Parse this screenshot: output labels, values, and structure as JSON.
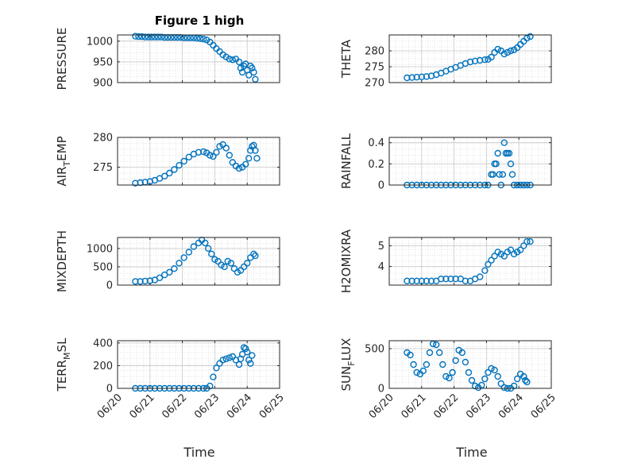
{
  "title": "Figure 1 high",
  "marker_color": "#0072BD",
  "chart_data": [
    {
      "type": "scatter",
      "ylabel": "PRESSURE",
      "ylim": [
        900,
        1015
      ],
      "yticks": [
        900,
        950,
        1000
      ],
      "xlim": [
        0,
        5
      ],
      "grid": true,
      "points": [
        [
          0.55,
          1012
        ],
        [
          0.65,
          1011
        ],
        [
          0.75,
          1011
        ],
        [
          0.85,
          1010
        ],
        [
          0.95,
          1010
        ],
        [
          1.05,
          1010
        ],
        [
          1.15,
          1010
        ],
        [
          1.25,
          1010
        ],
        [
          1.35,
          1010
        ],
        [
          1.45,
          1009
        ],
        [
          1.55,
          1009
        ],
        [
          1.65,
          1009
        ],
        [
          1.75,
          1009
        ],
        [
          1.85,
          1009
        ],
        [
          1.95,
          1009
        ],
        [
          2.05,
          1008
        ],
        [
          2.15,
          1008
        ],
        [
          2.25,
          1008
        ],
        [
          2.35,
          1008
        ],
        [
          2.45,
          1007
        ],
        [
          2.55,
          1006
        ],
        [
          2.65,
          1005
        ],
        [
          2.75,
          1003
        ],
        [
          2.85,
          998
        ],
        [
          2.95,
          990
        ],
        [
          3.05,
          982
        ],
        [
          3.15,
          975
        ],
        [
          3.25,
          967
        ],
        [
          3.35,
          962
        ],
        [
          3.45,
          957
        ],
        [
          3.55,
          955
        ],
        [
          3.65,
          957
        ],
        [
          3.75,
          950
        ],
        [
          3.8,
          935
        ],
        [
          3.85,
          925
        ],
        [
          3.9,
          940
        ],
        [
          3.95,
          945
        ],
        [
          4.0,
          930
        ],
        [
          4.05,
          918
        ],
        [
          4.1,
          940
        ],
        [
          4.15,
          935
        ],
        [
          4.2,
          925
        ],
        [
          4.25,
          908
        ]
      ]
    },
    {
      "type": "scatter",
      "ylabel": "THETA",
      "ylim": [
        270,
        285
      ],
      "yticks": [
        270,
        275,
        280
      ],
      "xlim": [
        0,
        5
      ],
      "grid": true,
      "points": [
        [
          0.55,
          271.5
        ],
        [
          0.7,
          271.6
        ],
        [
          0.85,
          271.7
        ],
        [
          1.0,
          271.8
        ],
        [
          1.15,
          271.9
        ],
        [
          1.3,
          272.1
        ],
        [
          1.45,
          272.5
        ],
        [
          1.6,
          273.0
        ],
        [
          1.75,
          273.6
        ],
        [
          1.9,
          274.2
        ],
        [
          2.05,
          274.8
        ],
        [
          2.2,
          275.4
        ],
        [
          2.35,
          276.0
        ],
        [
          2.5,
          276.5
        ],
        [
          2.65,
          276.8
        ],
        [
          2.8,
          277.0
        ],
        [
          2.95,
          277.2
        ],
        [
          3.05,
          277.3
        ],
        [
          3.15,
          278.0
        ],
        [
          3.25,
          279.5
        ],
        [
          3.35,
          280.5
        ],
        [
          3.45,
          280.0
        ],
        [
          3.55,
          279.0
        ],
        [
          3.65,
          279.5
        ],
        [
          3.75,
          280.0
        ],
        [
          3.85,
          280.3
        ],
        [
          3.95,
          281.0
        ],
        [
          4.05,
          282.0
        ],
        [
          4.15,
          283.0
        ],
        [
          4.25,
          284.0
        ],
        [
          4.35,
          284.5
        ]
      ]
    },
    {
      "type": "scatter",
      "ylabel_main": "AIR",
      "ylabel_sub": "T",
      "ylabel_rest": "EMP",
      "ylim": [
        272,
        280
      ],
      "yticks": [
        275,
        280
      ],
      "xlim": [
        0,
        5
      ],
      "grid": true,
      "points": [
        [
          0.55,
          272.3
        ],
        [
          0.7,
          272.4
        ],
        [
          0.85,
          272.5
        ],
        [
          1.0,
          272.6
        ],
        [
          1.15,
          272.8
        ],
        [
          1.3,
          273.1
        ],
        [
          1.45,
          273.5
        ],
        [
          1.6,
          274.0
        ],
        [
          1.75,
          274.6
        ],
        [
          1.9,
          275.3
        ],
        [
          2.05,
          276.0
        ],
        [
          2.2,
          276.7
        ],
        [
          2.35,
          277.2
        ],
        [
          2.5,
          277.5
        ],
        [
          2.65,
          277.6
        ],
        [
          2.75,
          277.4
        ],
        [
          2.85,
          277.0
        ],
        [
          2.95,
          276.8
        ],
        [
          3.05,
          277.5
        ],
        [
          3.15,
          278.5
        ],
        [
          3.25,
          278.8
        ],
        [
          3.35,
          278.2
        ],
        [
          3.45,
          277.0
        ],
        [
          3.55,
          275.8
        ],
        [
          3.65,
          275.2
        ],
        [
          3.75,
          274.8
        ],
        [
          3.85,
          275.0
        ],
        [
          3.95,
          275.5
        ],
        [
          4.05,
          276.5
        ],
        [
          4.1,
          277.8
        ],
        [
          4.15,
          278.5
        ],
        [
          4.2,
          278.7
        ],
        [
          4.25,
          277.8
        ],
        [
          4.3,
          276.5
        ]
      ]
    },
    {
      "type": "scatter",
      "ylabel": "RAINFALL",
      "ylim": [
        0,
        0.45
      ],
      "yticks": [
        0,
        0.2,
        0.4
      ],
      "xlim": [
        0,
        5
      ],
      "grid": true,
      "points": [
        [
          0.55,
          0
        ],
        [
          0.7,
          0
        ],
        [
          0.85,
          0
        ],
        [
          1.0,
          0
        ],
        [
          1.15,
          0
        ],
        [
          1.3,
          0
        ],
        [
          1.45,
          0
        ],
        [
          1.6,
          0
        ],
        [
          1.75,
          0
        ],
        [
          1.9,
          0
        ],
        [
          2.05,
          0
        ],
        [
          2.2,
          0
        ],
        [
          2.35,
          0
        ],
        [
          2.5,
          0
        ],
        [
          2.65,
          0
        ],
        [
          2.8,
          0
        ],
        [
          2.95,
          0
        ],
        [
          3.05,
          0
        ],
        [
          3.15,
          0.1
        ],
        [
          3.2,
          0.1
        ],
        [
          3.25,
          0.2
        ],
        [
          3.3,
          0.2
        ],
        [
          3.35,
          0.3
        ],
        [
          3.4,
          0.1
        ],
        [
          3.45,
          0
        ],
        [
          3.5,
          0.1
        ],
        [
          3.55,
          0.4
        ],
        [
          3.6,
          0.3
        ],
        [
          3.65,
          0.3
        ],
        [
          3.7,
          0.3
        ],
        [
          3.75,
          0.2
        ],
        [
          3.8,
          0.1
        ],
        [
          3.85,
          0
        ],
        [
          3.95,
          0
        ],
        [
          4.05,
          0
        ],
        [
          4.15,
          0
        ],
        [
          4.25,
          0
        ],
        [
          4.35,
          0
        ]
      ]
    },
    {
      "type": "scatter",
      "ylabel": "MIXDEPTH",
      "ylim": [
        0,
        1300
      ],
      "yticks": [
        0,
        500,
        1000
      ],
      "xlim": [
        0,
        5
      ],
      "grid": true,
      "points": [
        [
          0.55,
          100
        ],
        [
          0.7,
          100
        ],
        [
          0.85,
          110
        ],
        [
          1.0,
          120
        ],
        [
          1.15,
          140
        ],
        [
          1.3,
          200
        ],
        [
          1.45,
          280
        ],
        [
          1.6,
          350
        ],
        [
          1.75,
          450
        ],
        [
          1.9,
          600
        ],
        [
          2.05,
          750
        ],
        [
          2.2,
          900
        ],
        [
          2.35,
          1050
        ],
        [
          2.5,
          1150
        ],
        [
          2.6,
          1230
        ],
        [
          2.7,
          1150
        ],
        [
          2.8,
          1000
        ],
        [
          2.9,
          850
        ],
        [
          3.0,
          700
        ],
        [
          3.1,
          650
        ],
        [
          3.2,
          550
        ],
        [
          3.3,
          500
        ],
        [
          3.4,
          650
        ],
        [
          3.5,
          600
        ],
        [
          3.6,
          450
        ],
        [
          3.7,
          350
        ],
        [
          3.8,
          400
        ],
        [
          3.9,
          500
        ],
        [
          4.0,
          600
        ],
        [
          4.1,
          750
        ],
        [
          4.2,
          850
        ],
        [
          4.25,
          800
        ]
      ]
    },
    {
      "type": "scatter",
      "ylabel": "H2OMIXRA",
      "ylim": [
        3.1,
        5.4
      ],
      "yticks": [
        4,
        5
      ],
      "xlim": [
        0,
        5
      ],
      "grid": true,
      "points": [
        [
          0.55,
          3.3
        ],
        [
          0.7,
          3.3
        ],
        [
          0.85,
          3.3
        ],
        [
          1.0,
          3.3
        ],
        [
          1.15,
          3.3
        ],
        [
          1.3,
          3.3
        ],
        [
          1.45,
          3.3
        ],
        [
          1.6,
          3.4
        ],
        [
          1.75,
          3.4
        ],
        [
          1.9,
          3.4
        ],
        [
          2.05,
          3.4
        ],
        [
          2.2,
          3.4
        ],
        [
          2.35,
          3.3
        ],
        [
          2.5,
          3.3
        ],
        [
          2.65,
          3.4
        ],
        [
          2.8,
          3.5
        ],
        [
          2.95,
          3.8
        ],
        [
          3.05,
          4.1
        ],
        [
          3.15,
          4.3
        ],
        [
          3.25,
          4.5
        ],
        [
          3.35,
          4.7
        ],
        [
          3.45,
          4.6
        ],
        [
          3.55,
          4.5
        ],
        [
          3.65,
          4.7
        ],
        [
          3.75,
          4.8
        ],
        [
          3.85,
          4.6
        ],
        [
          3.95,
          4.7
        ],
        [
          4.05,
          4.8
        ],
        [
          4.15,
          5.0
        ],
        [
          4.25,
          5.2
        ],
        [
          4.35,
          5.2
        ]
      ]
    },
    {
      "type": "scatter",
      "ylabel_main": "TERR",
      "ylabel_sub": "M",
      "ylabel_rest": "SL",
      "ylim": [
        0,
        420
      ],
      "yticks": [
        0,
        200,
        400
      ],
      "xlim": [
        0,
        5
      ],
      "grid": true,
      "points": [
        [
          0.55,
          0
        ],
        [
          0.7,
          0
        ],
        [
          0.85,
          0
        ],
        [
          1.0,
          0
        ],
        [
          1.15,
          0
        ],
        [
          1.3,
          0
        ],
        [
          1.45,
          0
        ],
        [
          1.6,
          0
        ],
        [
          1.75,
          0
        ],
        [
          1.9,
          0
        ],
        [
          2.05,
          0
        ],
        [
          2.2,
          0
        ],
        [
          2.35,
          0
        ],
        [
          2.5,
          0
        ],
        [
          2.65,
          0
        ],
        [
          2.75,
          0
        ],
        [
          2.85,
          20
        ],
        [
          2.95,
          100
        ],
        [
          3.05,
          180
        ],
        [
          3.15,
          220
        ],
        [
          3.25,
          250
        ],
        [
          3.35,
          260
        ],
        [
          3.45,
          270
        ],
        [
          3.55,
          280
        ],
        [
          3.65,
          250
        ],
        [
          3.75,
          210
        ],
        [
          3.8,
          260
        ],
        [
          3.85,
          300
        ],
        [
          3.9,
          360
        ],
        [
          3.95,
          350
        ],
        [
          4.0,
          320
        ],
        [
          4.05,
          250
        ],
        [
          4.1,
          220
        ],
        [
          4.15,
          290
        ]
      ]
    },
    {
      "type": "scatter",
      "ylabel_main": "SUN",
      "ylabel_sub": "F",
      "ylabel_rest": "LUX",
      "ylim": [
        0,
        600
      ],
      "yticks": [
        0,
        500
      ],
      "xlim": [
        0,
        5
      ],
      "grid": true,
      "points": [
        [
          0.55,
          450
        ],
        [
          0.65,
          420
        ],
        [
          0.75,
          300
        ],
        [
          0.85,
          200
        ],
        [
          0.95,
          180
        ],
        [
          1.05,
          220
        ],
        [
          1.15,
          300
        ],
        [
          1.25,
          450
        ],
        [
          1.35,
          560
        ],
        [
          1.45,
          550
        ],
        [
          1.55,
          450
        ],
        [
          1.65,
          300
        ],
        [
          1.75,
          150
        ],
        [
          1.85,
          130
        ],
        [
          1.95,
          200
        ],
        [
          2.05,
          350
        ],
        [
          2.15,
          480
        ],
        [
          2.25,
          450
        ],
        [
          2.35,
          330
        ],
        [
          2.45,
          200
        ],
        [
          2.55,
          100
        ],
        [
          2.65,
          30
        ],
        [
          2.75,
          10
        ],
        [
          2.85,
          40
        ],
        [
          2.95,
          120
        ],
        [
          3.05,
          200
        ],
        [
          3.15,
          250
        ],
        [
          3.25,
          230
        ],
        [
          3.35,
          150
        ],
        [
          3.45,
          60
        ],
        [
          3.55,
          10
        ],
        [
          3.65,
          0
        ],
        [
          3.75,
          0
        ],
        [
          3.85,
          30
        ],
        [
          3.95,
          120
        ],
        [
          4.05,
          180
        ],
        [
          4.15,
          150
        ],
        [
          4.2,
          100
        ],
        [
          4.25,
          80
        ]
      ]
    }
  ],
  "xtick_labels": [
    "06/20",
    "06/21",
    "06/22",
    "06/23",
    "06/24",
    "06/25"
  ],
  "xlabel": "Time"
}
